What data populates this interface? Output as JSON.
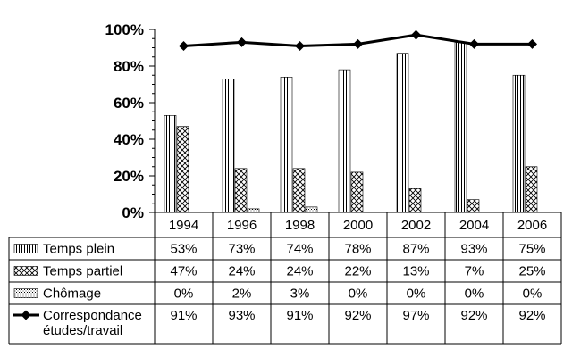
{
  "chart_data": {
    "type": "bar",
    "categories": [
      "1994",
      "1996",
      "1998",
      "2000",
      "2002",
      "2004",
      "2006"
    ],
    "ylim": [
      0,
      100
    ],
    "yticks": [
      "0%",
      "20%",
      "40%",
      "60%",
      "80%",
      "100%"
    ],
    "grid": false,
    "legend_placement": "data table below chart",
    "series": [
      {
        "name": "Temps plein",
        "type": "bar",
        "pattern": "vertical-lines",
        "values": [
          53,
          73,
          74,
          78,
          87,
          93,
          75
        ],
        "labels": [
          "53%",
          "73%",
          "74%",
          "78%",
          "87%",
          "93%",
          "75%"
        ]
      },
      {
        "name": "Temps partiel",
        "type": "bar",
        "pattern": "crosshatch",
        "values": [
          47,
          24,
          24,
          22,
          13,
          7,
          25
        ],
        "labels": [
          "47%",
          "24%",
          "24%",
          "22%",
          "13%",
          "7%",
          "25%"
        ]
      },
      {
        "name": "Chômage",
        "type": "bar",
        "pattern": "dots",
        "values": [
          0,
          2,
          3,
          0,
          0,
          0,
          0
        ],
        "labels": [
          "0%",
          "2%",
          "3%",
          "0%",
          "0%",
          "0%",
          "0%"
        ]
      },
      {
        "name": "Correspondance études/travail",
        "name_lines": [
          "Correspondance",
          "études/travail"
        ],
        "type": "line",
        "marker": "diamond",
        "values": [
          91,
          93,
          91,
          92,
          97,
          92,
          92
        ],
        "labels": [
          "91%",
          "93%",
          "91%",
          "92%",
          "97%",
          "92%",
          "92%"
        ]
      }
    ]
  }
}
